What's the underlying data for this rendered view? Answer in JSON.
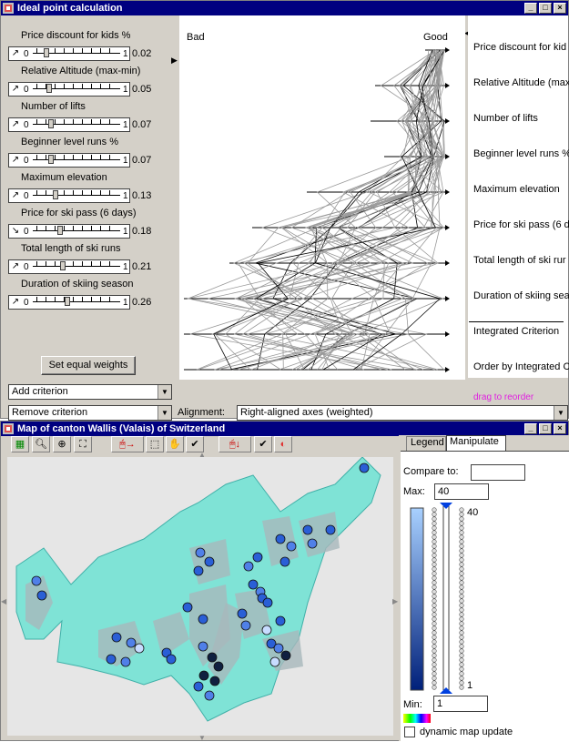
{
  "top_window": {
    "title": "Ideal point calculation",
    "criteria": [
      {
        "label": "Price discount for kids %",
        "weight": "0.02",
        "arrow": "↗"
      },
      {
        "label": "Relative Altitude (max-min)",
        "weight": "0.05",
        "arrow": "↗"
      },
      {
        "label": "Number of lifts",
        "weight": "0.07",
        "arrow": "↗"
      },
      {
        "label": "Beginner level runs %",
        "weight": "0.07",
        "arrow": "↗"
      },
      {
        "label": "Maximum elevation",
        "weight": "0.13",
        "arrow": "↗"
      },
      {
        "label": "Price for ski pass (6 days)",
        "weight": "0.18",
        "arrow": "↘"
      },
      {
        "label": "Total length of ski runs",
        "weight": "0.21",
        "arrow": "↗"
      },
      {
        "label": "Duration of skiing season",
        "weight": "0.26",
        "arrow": "↗"
      }
    ],
    "slider_min": "0",
    "slider_max": "1",
    "set_equal_weights": "Set equal weights",
    "add_criterion": "Add criterion",
    "remove_criterion": "Remove criterion",
    "axis_bad": "Bad",
    "axis_good": "Good",
    "right_labels": [
      "Price discount for kid",
      "Relative Altitude (max",
      "Number of lifts",
      "Beginner level runs %",
      "Maximum elevation",
      "Price for ski pass (6 d",
      "Total length of ski rur",
      "Duration of skiing sea",
      "Integrated Criterion",
      "Order by Integrated C"
    ],
    "drag_hint": "drag to reorder",
    "alignment_label": "Alignment:",
    "alignment_value": "Right-aligned axes (weighted)"
  },
  "map_window": {
    "title": "Map of canton Wallis (Valais) of Switzerland",
    "tabs": [
      "Legend",
      "Manipulate"
    ],
    "compare_label": "Compare to:",
    "compare_value": "",
    "max_label": "Max:",
    "max_value": "40",
    "min_label": "Min:",
    "min_value": "1",
    "scale_top": "40",
    "scale_bottom": "1",
    "dynamic_update": "dynamic map update",
    "colors": {
      "map_fill": "#7fe3d6",
      "region_gray": "#a8b8bc",
      "dot_blue": "#2a5fd6"
    }
  }
}
